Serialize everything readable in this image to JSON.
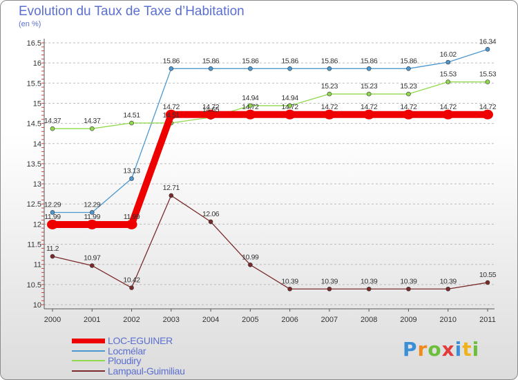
{
  "header": {
    "title": "Evolution du Taux de Taxe d’Habitation",
    "subtitle": "(en %)"
  },
  "logo": {
    "text": "Proxiti",
    "letters": [
      {
        "ch": "P",
        "color": "#3b8fd6"
      },
      {
        "ch": "r",
        "color": "#f08a1c"
      },
      {
        "ch": "o",
        "color": "#6bbf3a"
      },
      {
        "ch": "x",
        "color": "#e23b3b"
      },
      {
        "ch": "i",
        "color": "#3b8fd6"
      },
      {
        "ch": "t",
        "color": "#f0b21c"
      },
      {
        "ch": "i",
        "color": "#6bbf3a"
      }
    ]
  },
  "chart_data": {
    "type": "line",
    "title": "Evolution du Taux de Taxe d’Habitation",
    "ylabel": "(en %)",
    "x": [
      "2000",
      "2001",
      "2002",
      "2003",
      "2004",
      "2005",
      "2006",
      "2007",
      "2008",
      "2009",
      "2010",
      "2011"
    ],
    "ylim": [
      10,
      16.5
    ],
    "yticks": [
      "10",
      "10.5",
      "11",
      "11.5",
      "12",
      "12.5",
      "13",
      "13.5",
      "14",
      "14.5",
      "15",
      "15.5",
      "16",
      "16.5"
    ],
    "grid": "horizontal dashed",
    "legend_position": "bottom-left",
    "series": [
      {
        "name": "LOC-EGUINER",
        "color": "#ee0000",
        "emphasis": true,
        "values": [
          11.99,
          11.99,
          11.99,
          14.72,
          14.72,
          14.72,
          14.72,
          14.72,
          14.72,
          14.72,
          14.72,
          14.72
        ],
        "labels": [
          "11.99",
          "11.99",
          "11.99",
          "14.72",
          "14.72",
          "14.72",
          "14.72",
          "14.72",
          "14.72",
          "14.72",
          "14.72",
          "14.72"
        ]
      },
      {
        "name": "Locmélar",
        "color": "#4d97cf",
        "emphasis": false,
        "values": [
          12.29,
          12.29,
          13.13,
          15.86,
          15.86,
          15.86,
          15.86,
          15.86,
          15.86,
          15.86,
          16.02,
          16.34
        ],
        "labels": [
          "12.29",
          "12.29",
          "13.13",
          "15.86",
          "15.86",
          "15.86",
          "15.86",
          "15.86",
          "15.86",
          "15.86",
          "16.02",
          "16.34"
        ]
      },
      {
        "name": "Ploudiry",
        "color": "#8fd94a",
        "emphasis": false,
        "values": [
          14.37,
          14.37,
          14.51,
          14.51,
          14.65,
          14.94,
          14.94,
          15.23,
          15.23,
          15.23,
          15.53,
          15.53
        ],
        "labels": [
          "14.37",
          "14.37",
          "14.51",
          "14.51",
          "14.65",
          "14.94",
          "14.94",
          "15.23",
          "15.23",
          "15.23",
          "15.53",
          "15.53"
        ]
      },
      {
        "name": "Lampaul-Guimiliau",
        "color": "#7a2a2a",
        "emphasis": false,
        "values": [
          11.2,
          10.97,
          10.42,
          12.71,
          12.06,
          10.99,
          10.39,
          10.39,
          10.39,
          10.39,
          10.39,
          10.55
        ],
        "labels": [
          "11.2",
          "10.97",
          "10.42",
          "12.71",
          "12.06",
          "10.99",
          "10.39",
          "10.39",
          "10.39",
          "10.39",
          "10.39",
          "10.55"
        ]
      }
    ]
  }
}
